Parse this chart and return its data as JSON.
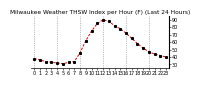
{
  "title": "Milwaukee Weather THSW Index per Hour (F) (Last 24 Hours)",
  "hours": [
    0,
    1,
    2,
    3,
    4,
    5,
    6,
    7,
    8,
    9,
    10,
    11,
    12,
    13,
    14,
    15,
    16,
    17,
    18,
    19,
    20,
    21,
    22,
    23
  ],
  "values": [
    38,
    36,
    34,
    33,
    32,
    31,
    33,
    34,
    46,
    62,
    75,
    85,
    90,
    88,
    82,
    78,
    72,
    65,
    58,
    52,
    47,
    44,
    42,
    40
  ],
  "line_color": "#dd0000",
  "marker_color": "#000000",
  "bg_color": "#ffffff",
  "grid_color": "#888888",
  "ylim": [
    25,
    95
  ],
  "yticks": [
    30,
    40,
    50,
    60,
    70,
    80,
    90
  ],
  "title_fontsize": 4.2,
  "tick_fontsize": 3.5,
  "vgrid_positions": [
    0,
    4,
    8,
    12,
    16,
    20
  ]
}
